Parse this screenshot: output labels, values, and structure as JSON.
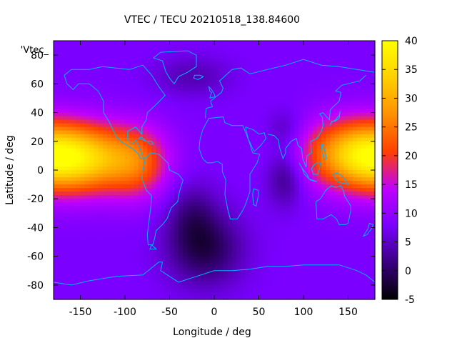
{
  "chart_data": {
    "type": "heatmap",
    "title": "VTEC / TECU 20210518_138.84600",
    "xlabel": "Longitude / deg",
    "ylabel": "Latitude / deg",
    "xlim": [
      -180,
      180
    ],
    "ylim": [
      -90,
      90
    ],
    "x_ticks": [
      -150,
      -100,
      -50,
      0,
      50,
      100,
      150
    ],
    "y_ticks": [
      -80,
      -60,
      -40,
      -20,
      0,
      20,
      40,
      60,
      80
    ],
    "legend_entry": "'Vtec_",
    "colorbar": {
      "range": [
        -5,
        40
      ],
      "ticks": [
        -5,
        0,
        5,
        10,
        15,
        20,
        25,
        30,
        35,
        40
      ],
      "palette": [
        "#000000",
        "#3a0080",
        "#7a00ff",
        "#c000ff",
        "#ff4000",
        "#ff9000",
        "#ffd000",
        "#ffff00"
      ]
    },
    "field": {
      "background_level": 8,
      "features": [
        {
          "lon": -155,
          "lat": 8,
          "sigma_lon": 45,
          "sigma_lat": 17,
          "amp": 26
        },
        {
          "lon": -85,
          "lat": 5,
          "sigma_lon": 25,
          "sigma_lat": 18,
          "amp": 11
        },
        {
          "lon": 150,
          "lat": 12,
          "sigma_lon": 40,
          "sigma_lat": 17,
          "amp": 16
        },
        {
          "lon": -10,
          "lat": -55,
          "sigma_lon": 30,
          "sigma_lat": 18,
          "amp": -9
        },
        {
          "lon": -25,
          "lat": -30,
          "sigma_lon": 20,
          "sigma_lat": 16,
          "amp": -5
        },
        {
          "lon": 80,
          "lat": -5,
          "sigma_lon": 15,
          "sigma_lat": 14,
          "amp": -7
        },
        {
          "lon": 80,
          "lat": 28,
          "sigma_lon": 15,
          "sigma_lat": 10,
          "amp": -4
        },
        {
          "lon": -25,
          "lat": 65,
          "sigma_lon": 30,
          "sigma_lat": 10,
          "amp": -4
        }
      ]
    },
    "coastline_color": "#00b4ff"
  }
}
